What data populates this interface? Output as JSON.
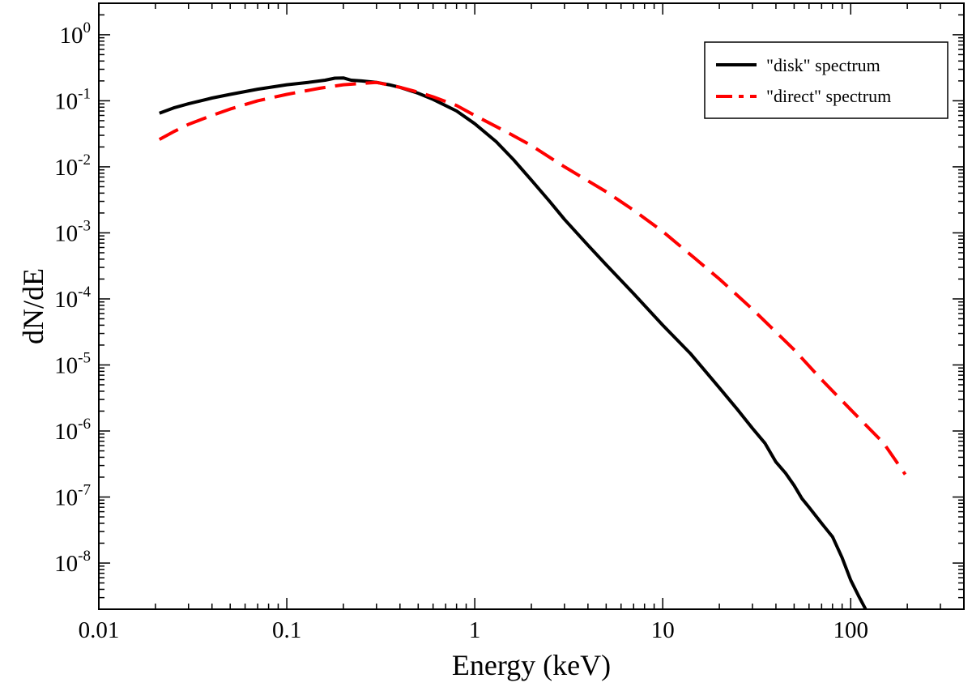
{
  "chart_data": {
    "type": "line",
    "xscale": "log",
    "yscale": "log",
    "xlim": [
      0.01,
      400
    ],
    "ylim": [
      2e-09,
      3
    ],
    "xlabel": "Energy (keV)",
    "ylabel": "dN/dE",
    "x_ticks": [
      {
        "value": 0.01,
        "label": "0.01"
      },
      {
        "value": 0.1,
        "label": "0.1"
      },
      {
        "value": 1,
        "label": "1"
      },
      {
        "value": 10,
        "label": "10"
      },
      {
        "value": 100,
        "label": "100"
      }
    ],
    "y_ticks": [
      {
        "value": 1,
        "base": "10",
        "exp": "0"
      },
      {
        "value": 0.1,
        "base": "10",
        "exp": "-1"
      },
      {
        "value": 0.01,
        "base": "10",
        "exp": "-2"
      },
      {
        "value": 0.001,
        "base": "10",
        "exp": "-3"
      },
      {
        "value": 0.0001,
        "base": "10",
        "exp": "-4"
      },
      {
        "value": 1e-05,
        "base": "10",
        "exp": "-5"
      },
      {
        "value": 1e-06,
        "base": "10",
        "exp": "-6"
      },
      {
        "value": 1e-07,
        "base": "10",
        "exp": "-7"
      },
      {
        "value": 1e-08,
        "base": "10",
        "exp": "-8"
      }
    ],
    "legend_position": "top-right",
    "series": [
      {
        "name": "\"disk\" spectrum",
        "color": "#000000",
        "style": "solid",
        "x": [
          0.021,
          0.025,
          0.03,
          0.04,
          0.05,
          0.07,
          0.1,
          0.13,
          0.16,
          0.18,
          0.2,
          0.22,
          0.25,
          0.3,
          0.35,
          0.4,
          0.5,
          0.6,
          0.8,
          1.0,
          1.3,
          1.6,
          2.0,
          2.5,
          3.0,
          4.0,
          5.0,
          7.0,
          10,
          14,
          20,
          25,
          30,
          35,
          40,
          45,
          50,
          55,
          60,
          70,
          80,
          90,
          100,
          110,
          120
        ],
        "y": [
          0.065,
          0.078,
          0.09,
          0.11,
          0.125,
          0.15,
          0.175,
          0.19,
          0.205,
          0.22,
          0.222,
          0.205,
          0.2,
          0.19,
          0.175,
          0.16,
          0.13,
          0.105,
          0.07,
          0.045,
          0.024,
          0.013,
          0.0063,
          0.003,
          0.0016,
          0.00065,
          0.00033,
          0.00012,
          4e-05,
          1.5e-05,
          4.5e-06,
          2.1e-06,
          1.1e-06,
          6.5e-07,
          3.4e-07,
          2.3e-07,
          1.5e-07,
          9.5e-08,
          7e-08,
          4e-08,
          2.5e-08,
          1.2e-08,
          5.5e-09,
          3.2e-09,
          2e-09
        ]
      },
      {
        "name": "\"direct\" spectrum",
        "color": "#ff0000",
        "style": "dashed",
        "x": [
          0.021,
          0.025,
          0.03,
          0.04,
          0.05,
          0.07,
          0.1,
          0.15,
          0.2,
          0.3,
          0.4,
          0.5,
          0.6,
          0.8,
          1.0,
          1.5,
          2.0,
          3.0,
          5.0,
          7.0,
          10,
          15,
          20,
          30,
          50,
          70,
          100,
          150,
          195
        ],
        "y": [
          0.026,
          0.034,
          0.044,
          0.06,
          0.075,
          0.1,
          0.125,
          0.155,
          0.175,
          0.19,
          0.16,
          0.135,
          0.115,
          0.085,
          0.06,
          0.033,
          0.021,
          0.01,
          0.0042,
          0.0022,
          0.00105,
          0.0004,
          0.0002,
          7e-05,
          1.7e-05,
          6e-06,
          2.1e-06,
          6.5e-07,
          2.2e-07
        ]
      }
    ]
  }
}
